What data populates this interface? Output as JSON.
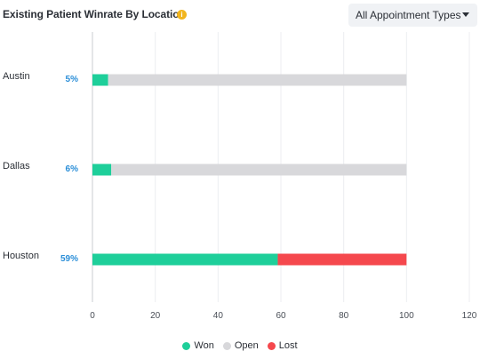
{
  "header": {
    "title": "Existing Patient Winrate By Location",
    "info_icon": "info-icon",
    "dropdown_label": "All Appointment Types",
    "dropdown_icon": "caret-down-icon"
  },
  "colors": {
    "won": "#1ecf9a",
    "open": "#d8d8db",
    "lost": "#f5484d",
    "percent_text": "#2a8ed8",
    "info": "#f2b51d"
  },
  "chart_data": {
    "type": "bar",
    "orientation": "horizontal",
    "stacked": true,
    "categories": [
      "Austin",
      "Dallas",
      "Houston"
    ],
    "percent_labels": [
      "5%",
      "6%",
      "59%"
    ],
    "series": [
      {
        "name": "Won",
        "values": [
          5,
          6,
          59
        ]
      },
      {
        "name": "Open",
        "values": [
          95,
          94,
          0
        ]
      },
      {
        "name": "Lost",
        "values": [
          0,
          0,
          41
        ]
      }
    ],
    "xlim": [
      0,
      120
    ],
    "xticks": [
      0,
      20,
      40,
      60,
      80,
      100,
      120
    ],
    "grid": true,
    "legend_position": "bottom"
  }
}
